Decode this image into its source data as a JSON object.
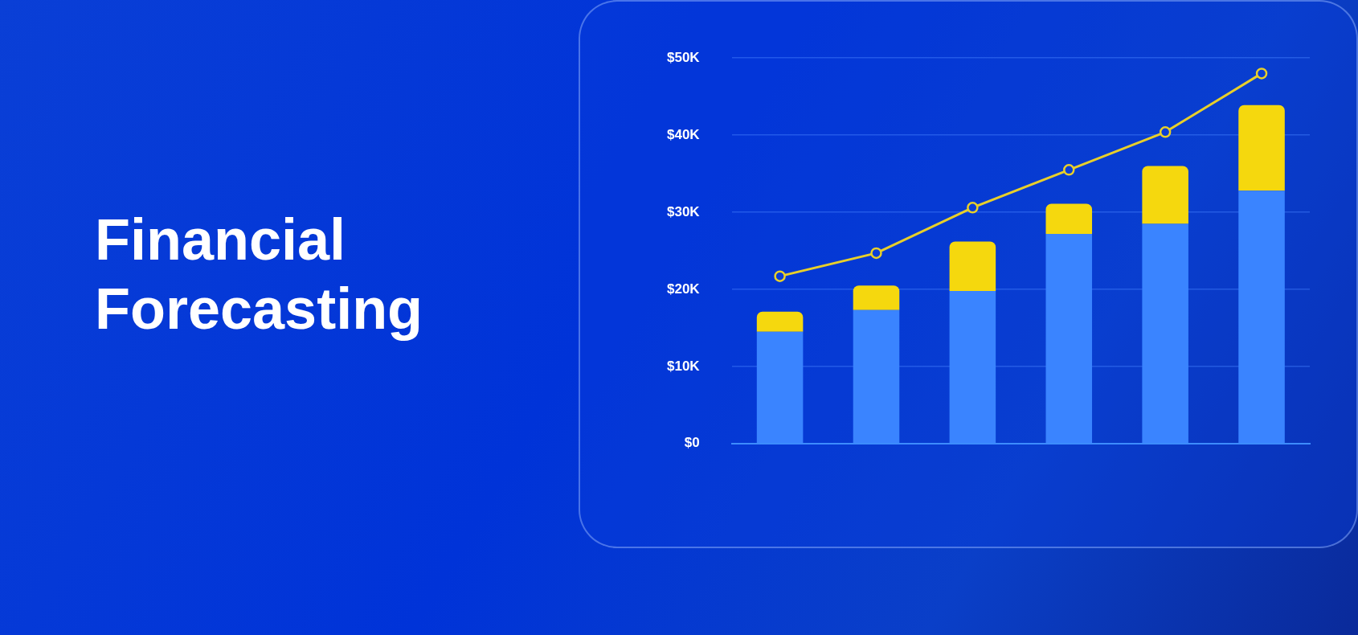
{
  "chart_data": {
    "type": "bar",
    "title": "Financial Forecasting",
    "stacked": true,
    "categories": [
      null,
      null,
      null,
      null,
      null,
      null
    ],
    "series": [
      {
        "color": "#3a84ff",
        "values": [
          14500,
          17300,
          19800,
          27200,
          28500,
          32800
        ]
      },
      {
        "color": "#f5d80e",
        "values": [
          2600,
          3200,
          6400,
          3900,
          7500,
          11100
        ]
      },
      {
        "type": "line",
        "color": "#e8cf2a",
        "marker": "circle",
        "values": [
          21700,
          24700,
          30600,
          35500,
          40400,
          48000
        ]
      }
    ],
    "ylim": [
      0,
      50000
    ],
    "yticks": [
      {
        "value": 0,
        "label": "$0"
      },
      {
        "value": 10000,
        "label": "$10K"
      },
      {
        "value": 20000,
        "label": "$20K"
      },
      {
        "value": 30000,
        "label": "$30K"
      },
      {
        "value": 40000,
        "label": "$40K"
      },
      {
        "value": 50000,
        "label": "$50K"
      }
    ],
    "grid": "y",
    "legend": false,
    "tick_labels": "y"
  }
}
